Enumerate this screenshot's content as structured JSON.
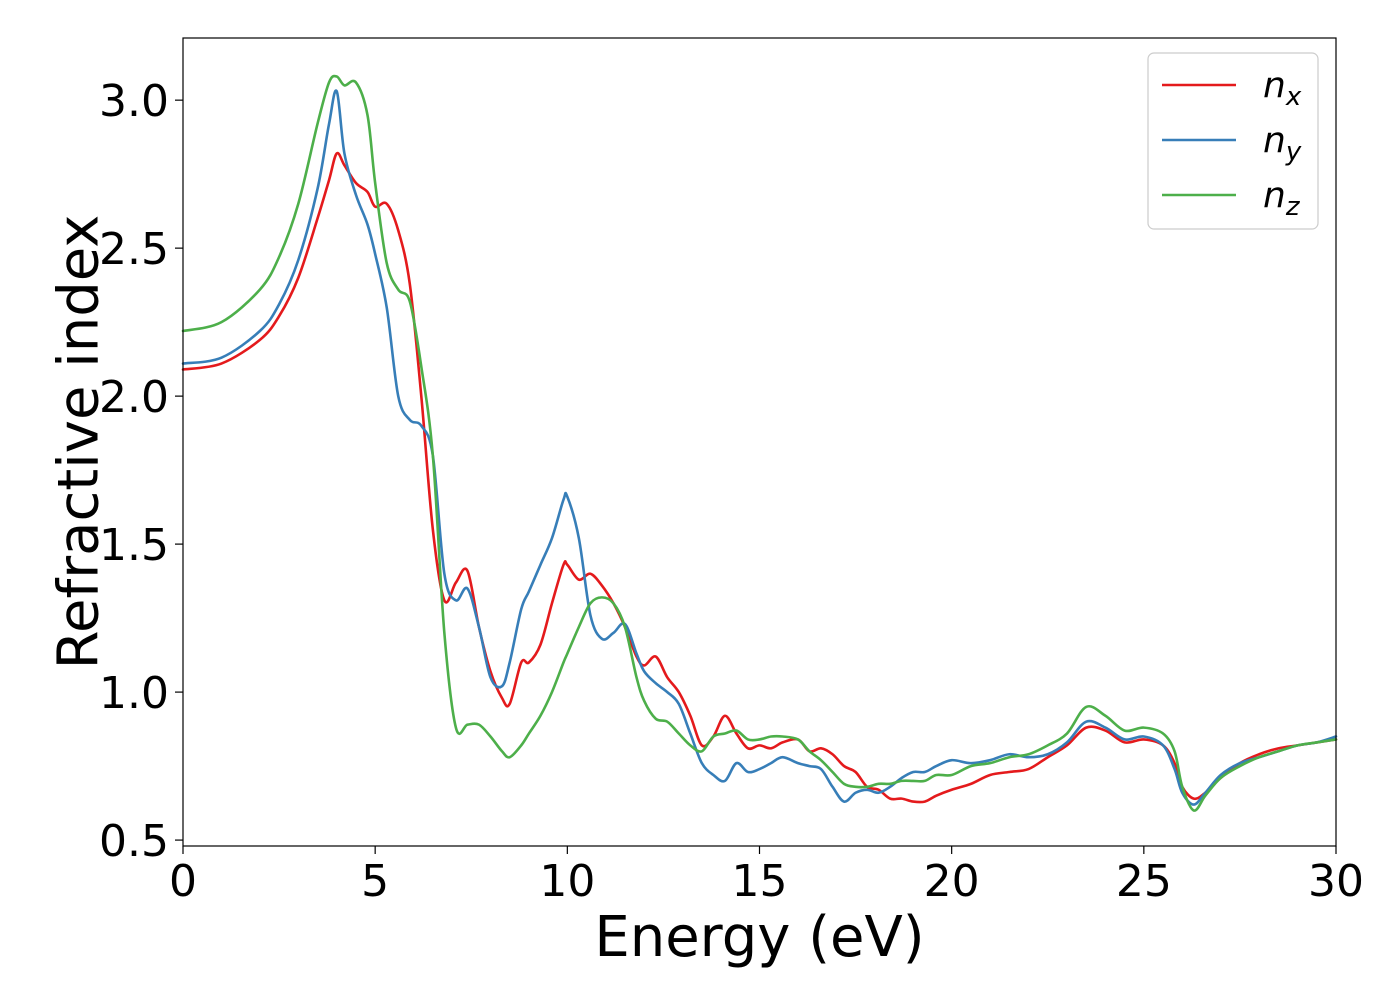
{
  "chart_data": {
    "type": "line",
    "xlabel": "Energy (eV)",
    "ylabel": "Refractive index",
    "xlim": [
      0,
      30
    ],
    "ylim": [
      0.48,
      3.21
    ],
    "xticks": [
      0,
      5,
      10,
      15,
      20,
      25,
      30
    ],
    "xtick_labels": [
      "0",
      "5",
      "10",
      "15",
      "20",
      "25",
      "30"
    ],
    "yticks": [
      0.5,
      1.0,
      1.5,
      2.0,
      2.5,
      3.0
    ],
    "ytick_labels": [
      "0.5",
      "1.0",
      "1.5",
      "2.0",
      "2.5",
      "3.0"
    ],
    "grid": false,
    "legend_position": "top-right",
    "series": [
      {
        "name": "n_x",
        "label_base": "n",
        "label_sub": "x",
        "color": "#e41a1c",
        "x": [
          0,
          1,
          2,
          2.5,
          3,
          3.5,
          3.8,
          4.0,
          4.2,
          4.5,
          4.8,
          5.0,
          5.3,
          5.6,
          5.9,
          6.2,
          6.5,
          6.8,
          7.1,
          7.4,
          7.7,
          8.0,
          8.3,
          8.5,
          8.8,
          9.0,
          9.3,
          9.6,
          9.9,
          10.0,
          10.3,
          10.6,
          10.9,
          11.2,
          11.5,
          11.8,
          12.0,
          12.3,
          12.6,
          12.9,
          13.2,
          13.5,
          13.8,
          14.1,
          14.4,
          14.7,
          15.0,
          15.3,
          15.6,
          16.0,
          16.3,
          16.6,
          16.9,
          17.2,
          17.5,
          17.8,
          18.1,
          18.4,
          18.7,
          19.0,
          19.3,
          19.6,
          20.0,
          20.5,
          21.0,
          21.5,
          22.0,
          22.5,
          23.0,
          23.5,
          24.0,
          24.5,
          25.0,
          25.5,
          25.8,
          26.0,
          26.3,
          26.6,
          27.0,
          27.5,
          28.0,
          28.5,
          29.0,
          29.5,
          30.0
        ],
        "y": [
          2.09,
          2.11,
          2.19,
          2.27,
          2.4,
          2.6,
          2.73,
          2.82,
          2.78,
          2.72,
          2.69,
          2.64,
          2.65,
          2.56,
          2.38,
          2.0,
          1.55,
          1.31,
          1.37,
          1.41,
          1.22,
          1.07,
          0.98,
          0.96,
          1.1,
          1.1,
          1.16,
          1.3,
          1.43,
          1.43,
          1.38,
          1.4,
          1.36,
          1.3,
          1.22,
          1.12,
          1.09,
          1.12,
          1.05,
          1.0,
          0.92,
          0.82,
          0.85,
          0.92,
          0.86,
          0.81,
          0.82,
          0.81,
          0.83,
          0.84,
          0.8,
          0.81,
          0.79,
          0.75,
          0.73,
          0.68,
          0.67,
          0.64,
          0.64,
          0.63,
          0.63,
          0.65,
          0.67,
          0.69,
          0.72,
          0.73,
          0.74,
          0.78,
          0.82,
          0.88,
          0.87,
          0.83,
          0.84,
          0.82,
          0.76,
          0.68,
          0.64,
          0.66,
          0.71,
          0.76,
          0.79,
          0.81,
          0.82,
          0.83,
          0.84
        ]
      },
      {
        "name": "n_y",
        "label_base": "n",
        "label_sub": "y",
        "color": "#377eb8",
        "x": [
          0,
          1,
          2,
          2.5,
          3,
          3.5,
          3.8,
          4.0,
          4.2,
          4.5,
          4.8,
          5.0,
          5.3,
          5.6,
          5.9,
          6.2,
          6.5,
          6.8,
          7.1,
          7.4,
          7.7,
          8.0,
          8.3,
          8.5,
          8.8,
          9.0,
          9.3,
          9.6,
          9.9,
          10.0,
          10.3,
          10.6,
          10.9,
          11.2,
          11.5,
          11.8,
          12.0,
          12.3,
          12.6,
          12.9,
          13.2,
          13.5,
          13.8,
          14.1,
          14.4,
          14.7,
          15.0,
          15.3,
          15.6,
          16.0,
          16.3,
          16.6,
          16.9,
          17.2,
          17.5,
          17.8,
          18.1,
          18.4,
          18.7,
          19.0,
          19.3,
          19.6,
          20.0,
          20.5,
          21.0,
          21.5,
          22.0,
          22.5,
          23.0,
          23.5,
          24.0,
          24.5,
          25.0,
          25.5,
          25.8,
          26.0,
          26.3,
          26.6,
          27.0,
          27.5,
          28.0,
          28.5,
          29.0,
          29.5,
          30.0
        ],
        "y": [
          2.11,
          2.13,
          2.22,
          2.31,
          2.46,
          2.7,
          2.92,
          3.03,
          2.82,
          2.68,
          2.58,
          2.48,
          2.3,
          2.0,
          1.92,
          1.9,
          1.8,
          1.4,
          1.31,
          1.35,
          1.22,
          1.05,
          1.02,
          1.1,
          1.28,
          1.34,
          1.43,
          1.52,
          1.65,
          1.66,
          1.52,
          1.26,
          1.18,
          1.2,
          1.23,
          1.13,
          1.07,
          1.03,
          1.0,
          0.96,
          0.86,
          0.76,
          0.72,
          0.7,
          0.76,
          0.73,
          0.74,
          0.76,
          0.78,
          0.76,
          0.75,
          0.74,
          0.68,
          0.63,
          0.66,
          0.67,
          0.66,
          0.68,
          0.71,
          0.73,
          0.73,
          0.75,
          0.77,
          0.76,
          0.77,
          0.79,
          0.78,
          0.79,
          0.83,
          0.9,
          0.88,
          0.84,
          0.85,
          0.82,
          0.74,
          0.66,
          0.62,
          0.66,
          0.72,
          0.76,
          0.78,
          0.8,
          0.82,
          0.83,
          0.85
        ]
      },
      {
        "name": "n_z",
        "label_base": "n",
        "label_sub": "z",
        "color": "#4daf4a",
        "x": [
          0,
          1,
          2,
          2.5,
          3,
          3.5,
          3.8,
          4.0,
          4.2,
          4.5,
          4.8,
          5.0,
          5.3,
          5.6,
          5.9,
          6.2,
          6.5,
          6.8,
          7.1,
          7.4,
          7.7,
          8.0,
          8.3,
          8.5,
          8.8,
          9.0,
          9.3,
          9.6,
          9.9,
          10.0,
          10.3,
          10.6,
          10.9,
          11.2,
          11.5,
          11.8,
          12.0,
          12.3,
          12.6,
          12.9,
          13.2,
          13.5,
          13.8,
          14.1,
          14.4,
          14.7,
          15.0,
          15.3,
          15.6,
          16.0,
          16.3,
          16.6,
          16.9,
          17.2,
          17.5,
          17.8,
          18.1,
          18.4,
          18.7,
          19.0,
          19.3,
          19.6,
          20.0,
          20.5,
          21.0,
          21.5,
          22.0,
          22.5,
          23.0,
          23.5,
          24.0,
          24.5,
          25.0,
          25.5,
          25.8,
          26.0,
          26.3,
          26.6,
          27.0,
          27.5,
          28.0,
          28.5,
          29.0,
          29.5,
          30.0
        ],
        "y": [
          2.22,
          2.25,
          2.36,
          2.47,
          2.65,
          2.92,
          3.06,
          3.08,
          3.05,
          3.06,
          2.95,
          2.72,
          2.45,
          2.36,
          2.32,
          2.1,
          1.8,
          1.2,
          0.88,
          0.89,
          0.89,
          0.85,
          0.8,
          0.78,
          0.82,
          0.86,
          0.92,
          1.0,
          1.1,
          1.13,
          1.22,
          1.3,
          1.32,
          1.3,
          1.22,
          1.05,
          0.97,
          0.91,
          0.9,
          0.86,
          0.82,
          0.8,
          0.85,
          0.86,
          0.87,
          0.84,
          0.84,
          0.85,
          0.85,
          0.84,
          0.8,
          0.77,
          0.73,
          0.69,
          0.68,
          0.68,
          0.69,
          0.69,
          0.7,
          0.7,
          0.7,
          0.72,
          0.72,
          0.75,
          0.76,
          0.78,
          0.79,
          0.82,
          0.86,
          0.95,
          0.92,
          0.87,
          0.88,
          0.86,
          0.8,
          0.68,
          0.6,
          0.65,
          0.71,
          0.75,
          0.78,
          0.8,
          0.82,
          0.83,
          0.84
        ]
      }
    ]
  }
}
